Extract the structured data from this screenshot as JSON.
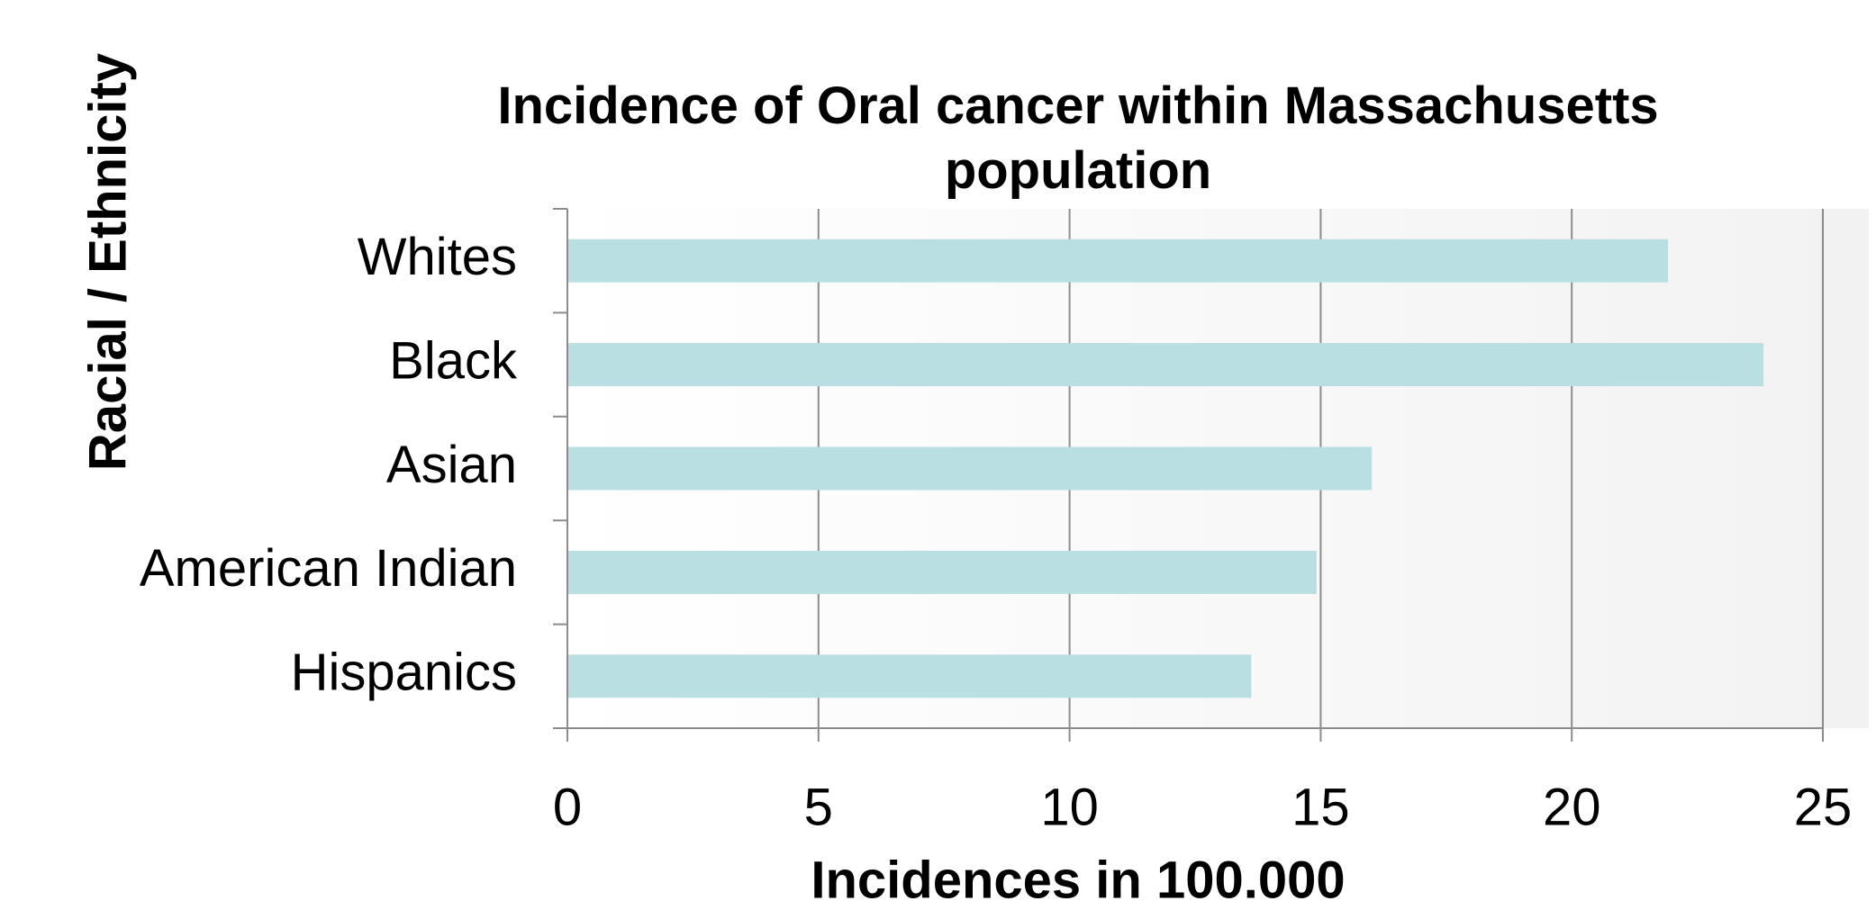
{
  "chart_data": {
    "type": "bar",
    "orientation": "horizontal",
    "title": "Incidence of Oral cancer within Massachusetts population",
    "x_label": "Incidences in 100.000",
    "y_label": "Racial / Ethnicity",
    "categories": [
      "Whites",
      "Black",
      "Asian",
      "American Indian",
      "Hispanics"
    ],
    "values": [
      21.9,
      23.8,
      16.0,
      14.9,
      13.6
    ],
    "color": "#badfe2",
    "xlim": [
      0,
      25
    ],
    "xticks": [
      0,
      5,
      10,
      15,
      20,
      25
    ],
    "grid": true
  }
}
